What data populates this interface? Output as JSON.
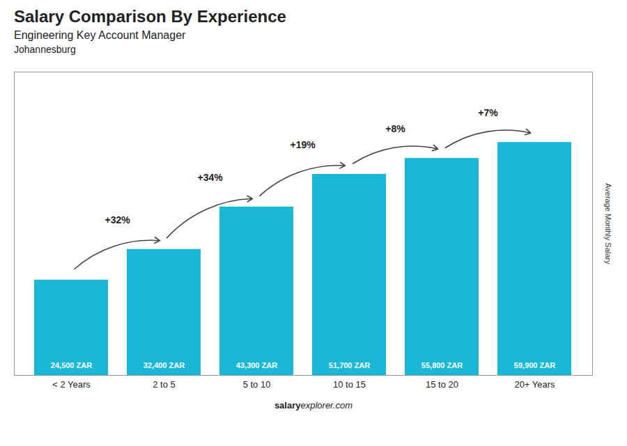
{
  "chart_data": {
    "type": "bar",
    "title": "Salary Comparison By Experience",
    "subtitle": "Engineering Key Account Manager",
    "city": "Johannesburg",
    "categories": [
      "< 2 Years",
      "2 to 5",
      "5 to 10",
      "10 to 15",
      "15 to 20",
      "20+ Years"
    ],
    "values": [
      24500,
      32400,
      43300,
      51700,
      55800,
      59900
    ],
    "value_labels": [
      "24,500 ZAR",
      "32,400 ZAR",
      "43,300 ZAR",
      "51,700 ZAR",
      "55,800 ZAR",
      "59,900 ZAR"
    ],
    "data_labels": true,
    "color": "#1ab8d8",
    "ylabel": "Average Monthly Salary",
    "ylim": [
      0,
      78000
    ],
    "tick_labels": "x",
    "grid": false,
    "annotations": [
      {
        "text": "+32%",
        "from": "< 2 Years",
        "to": "2 to 5"
      },
      {
        "text": "+34%",
        "from": "2 to 5",
        "to": "5 to 10"
      },
      {
        "text": "+19%",
        "from": "5 to 10",
        "to": "10 to 15"
      },
      {
        "text": "+8%",
        "from": "10 to 15",
        "to": "15 to 20"
      },
      {
        "text": "+7%",
        "from": "15 to 20",
        "to": "20+ Years"
      }
    ],
    "footer": [
      "salary",
      "explorer.com"
    ]
  }
}
